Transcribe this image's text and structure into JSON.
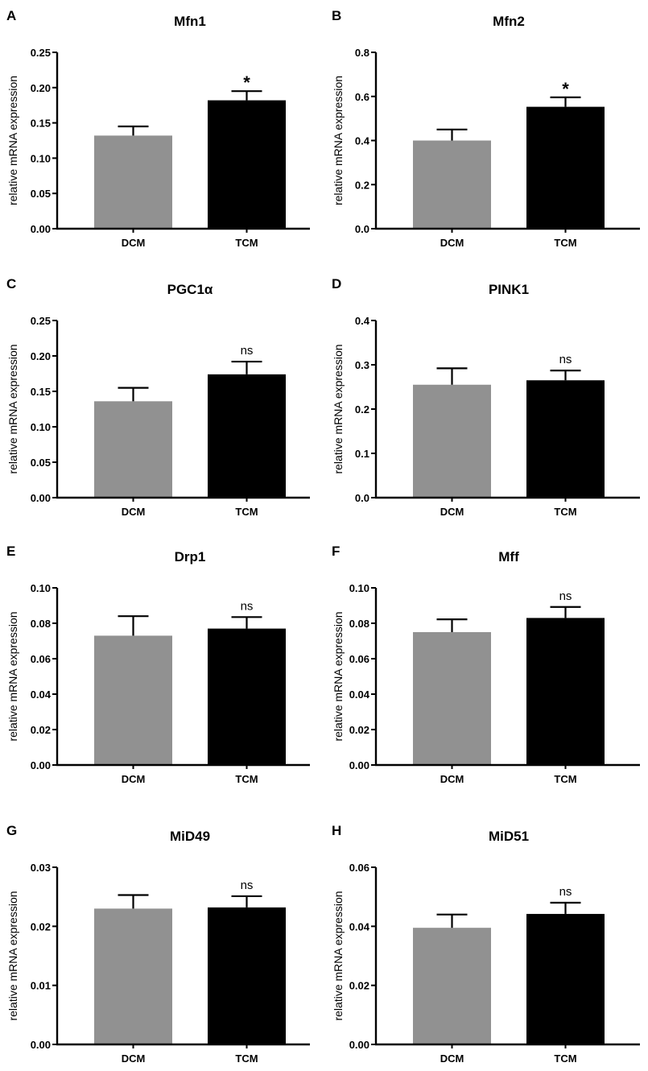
{
  "chart_data": [
    {
      "panel": "A",
      "type": "bar",
      "title": "Mfn1",
      "ylabel": "relative mRNA expression",
      "xlabel": "",
      "categories": [
        "DCM",
        "TCM"
      ],
      "values": [
        0.132,
        0.182
      ],
      "errors": [
        0.013,
        0.013
      ],
      "colors": [
        "#919191",
        "#000000"
      ],
      "ylim": [
        0,
        0.25
      ],
      "yticks": [
        "0.00",
        "0.05",
        "0.10",
        "0.15",
        "0.20",
        "0.25"
      ],
      "significance": "*",
      "grid": false,
      "legend": "none"
    },
    {
      "panel": "B",
      "type": "bar",
      "title": "Mfn2",
      "ylabel": "relative mRNA expression",
      "xlabel": "",
      "categories": [
        "DCM",
        "TCM"
      ],
      "values": [
        0.4,
        0.553
      ],
      "errors": [
        0.05,
        0.043
      ],
      "colors": [
        "#919191",
        "#000000"
      ],
      "ylim": [
        0,
        0.8
      ],
      "yticks": [
        "0.0",
        "0.2",
        "0.4",
        "0.6",
        "0.8"
      ],
      "significance": "*",
      "grid": false,
      "legend": "none"
    },
    {
      "panel": "C",
      "type": "bar",
      "title": "PGC1α",
      "ylabel": "relative mRNA expression",
      "xlabel": "",
      "categories": [
        "DCM",
        "TCM"
      ],
      "values": [
        0.136,
        0.174
      ],
      "errors": [
        0.019,
        0.018
      ],
      "colors": [
        "#919191",
        "#000000"
      ],
      "ylim": [
        0,
        0.25
      ],
      "yticks": [
        "0.00",
        "0.05",
        "0.10",
        "0.15",
        "0.20",
        "0.25"
      ],
      "significance": "ns",
      "grid": false,
      "legend": "none"
    },
    {
      "panel": "D",
      "type": "bar",
      "title": "PINK1",
      "ylabel": "relative mRNA expression",
      "xlabel": "",
      "categories": [
        "DCM",
        "TCM"
      ],
      "values": [
        0.255,
        0.265
      ],
      "errors": [
        0.037,
        0.022
      ],
      "colors": [
        "#919191",
        "#000000"
      ],
      "ylim": [
        0,
        0.4
      ],
      "yticks": [
        "0.0",
        "0.1",
        "0.2",
        "0.3",
        "0.4"
      ],
      "significance": "ns",
      "grid": false,
      "legend": "none"
    },
    {
      "panel": "E",
      "type": "bar",
      "title": "Drp1",
      "ylabel": "relative mRNA expression",
      "xlabel": "",
      "categories": [
        "DCM",
        "TCM"
      ],
      "values": [
        0.073,
        0.077
      ],
      "errors": [
        0.011,
        0.0065
      ],
      "colors": [
        "#919191",
        "#000000"
      ],
      "ylim": [
        0,
        0.1
      ],
      "yticks": [
        "0.00",
        "0.02",
        "0.04",
        "0.06",
        "0.08",
        "0.10"
      ],
      "significance": "ns",
      "grid": false,
      "legend": "none"
    },
    {
      "panel": "F",
      "type": "bar",
      "title": "Mff",
      "ylabel": "relative mRNA expression",
      "xlabel": "",
      "categories": [
        "DCM",
        "TCM"
      ],
      "values": [
        0.075,
        0.083
      ],
      "errors": [
        0.0072,
        0.0062
      ],
      "colors": [
        "#919191",
        "#000000"
      ],
      "ylim": [
        0,
        0.1
      ],
      "yticks": [
        "0.00",
        "0.02",
        "0.04",
        "0.06",
        "0.08",
        "0.10"
      ],
      "significance": "ns",
      "grid": false,
      "legend": "none"
    },
    {
      "panel": "G",
      "type": "bar",
      "title": "MiD49",
      "ylabel": "relative mRNA expression",
      "xlabel": "",
      "categories": [
        "DCM",
        "TCM"
      ],
      "values": [
        0.023,
        0.0232
      ],
      "errors": [
        0.0023,
        0.0019
      ],
      "colors": [
        "#919191",
        "#000000"
      ],
      "ylim": [
        0,
        0.03
      ],
      "yticks": [
        "0.00",
        "0.01",
        "0.02",
        "0.03"
      ],
      "significance": "ns",
      "grid": false,
      "legend": "none"
    },
    {
      "panel": "H",
      "type": "bar",
      "title": "MiD51",
      "ylabel": "relative mRNA expression",
      "xlabel": "",
      "categories": [
        "DCM",
        "TCM"
      ],
      "values": [
        0.0395,
        0.0442
      ],
      "errors": [
        0.0045,
        0.0038
      ],
      "colors": [
        "#919191",
        "#000000"
      ],
      "ylim": [
        0,
        0.06
      ],
      "yticks": [
        "0.00",
        "0.02",
        "0.04",
        "0.06"
      ],
      "significance": "ns",
      "grid": false,
      "legend": "none"
    }
  ]
}
